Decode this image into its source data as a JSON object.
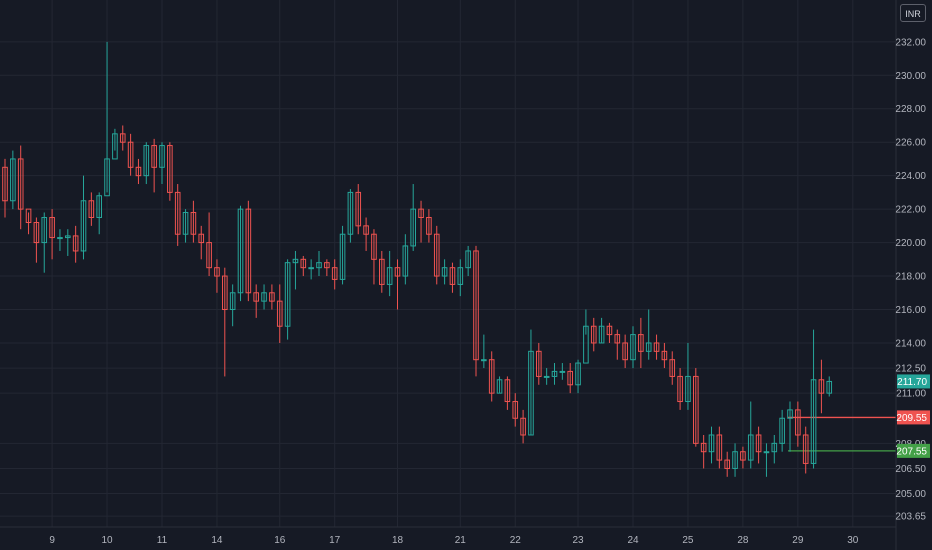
{
  "currency": "INR",
  "colors": {
    "background": "#161a25",
    "up": "#26a69a",
    "down": "#ef5350",
    "grid": "#232733",
    "text": "#b2b5be"
  },
  "chart_data": {
    "type": "candlestick",
    "title": "",
    "ylim": [
      203.0,
      234.5
    ],
    "y_ticks": [
      "232.00",
      "230.00",
      "228.00",
      "226.00",
      "224.00",
      "222.00",
      "220.00",
      "218.00",
      "216.00",
      "214.00",
      "212.50",
      "211.00",
      "208.00",
      "206.50",
      "205.00",
      "203.65"
    ],
    "x_ticks": [
      "9",
      "10",
      "11",
      "14",
      "16",
      "17",
      "18",
      "21",
      "22",
      "23",
      "24",
      "25",
      "28",
      "29",
      "30"
    ],
    "last_price": "211.70",
    "levels": [
      {
        "label": "209.55",
        "value": 209.55,
        "color": "#ef5350"
      },
      {
        "label": "207.55",
        "value": 207.55,
        "color": "#43a047"
      }
    ],
    "candles": [
      [
        224.5,
        222.5,
        225.0,
        221.5
      ],
      [
        222.5,
        225.0,
        225.5,
        222.0
      ],
      [
        225.0,
        222.0,
        225.8,
        220.8
      ],
      [
        222.0,
        221.2,
        221.8,
        220.5
      ],
      [
        221.2,
        220.0,
        221.5,
        218.8
      ],
      [
        220.0,
        221.5,
        221.8,
        218.2
      ],
      [
        221.5,
        220.3,
        222.0,
        219.0
      ],
      [
        220.3,
        220.3,
        220.8,
        219.5
      ],
      [
        220.3,
        220.4,
        220.8,
        219.2
      ],
      [
        220.4,
        219.5,
        221.0,
        218.8
      ],
      [
        219.5,
        222.5,
        224.0,
        219.0
      ],
      [
        222.5,
        221.5,
        223.0,
        221.0
      ],
      [
        221.5,
        222.8,
        223.0,
        220.5
      ],
      [
        222.8,
        225.0,
        232.0,
        223.0
      ],
      [
        225.0,
        226.5,
        226.8,
        225.5
      ],
      [
        226.5,
        226.0,
        227.0,
        225.5
      ],
      [
        226.0,
        224.5,
        226.5,
        224.0
      ],
      [
        224.5,
        224.0,
        225.0,
        223.5
      ],
      [
        224.0,
        225.8,
        226.0,
        223.5
      ],
      [
        225.8,
        224.5,
        226.2,
        223.0
      ],
      [
        224.5,
        225.8,
        226.0,
        223.5
      ],
      [
        225.8,
        223.0,
        226.0,
        222.5
      ],
      [
        223.0,
        220.5,
        223.5,
        219.8
      ],
      [
        220.5,
        221.8,
        222.0,
        220.0
      ],
      [
        221.8,
        220.5,
        222.5,
        220.0
      ],
      [
        220.5,
        220.0,
        221.0,
        219.0
      ],
      [
        220.0,
        218.5,
        221.8,
        218.0
      ],
      [
        218.5,
        218.0,
        219.0,
        217.0
      ],
      [
        218.0,
        216.0,
        218.5,
        212.0
      ],
      [
        216.0,
        217.0,
        217.5,
        215.0
      ],
      [
        217.0,
        222.0,
        222.2,
        216.5
      ],
      [
        222.0,
        217.0,
        222.5,
        216.5
      ],
      [
        217.0,
        216.5,
        217.5,
        215.5
      ],
      [
        216.5,
        217.0,
        217.5,
        216.0
      ],
      [
        217.0,
        216.5,
        217.5,
        216.0
      ],
      [
        216.5,
        215.0,
        217.5,
        214.0
      ],
      [
        215.0,
        218.8,
        219.0,
        214.2
      ],
      [
        218.8,
        219.0,
        219.5,
        217.2
      ],
      [
        219.0,
        218.5,
        219.2,
        218.0
      ],
      [
        218.5,
        218.5,
        219.0,
        217.8
      ],
      [
        218.5,
        218.8,
        219.5,
        218.0
      ],
      [
        218.8,
        218.5,
        219.0,
        218.0
      ],
      [
        218.5,
        217.8,
        219.0,
        217.2
      ],
      [
        217.8,
        220.5,
        221.0,
        217.5
      ],
      [
        220.5,
        223.0,
        223.2,
        220.0
      ],
      [
        223.0,
        221.0,
        223.5,
        220.5
      ],
      [
        221.0,
        220.5,
        221.5,
        219.5
      ],
      [
        220.5,
        219.0,
        220.8,
        217.5
      ],
      [
        219.0,
        217.5,
        219.5,
        217.0
      ],
      [
        217.5,
        218.5,
        219.5,
        216.8
      ],
      [
        218.5,
        218.0,
        219.0,
        216.0
      ],
      [
        218.0,
        219.8,
        220.5,
        217.5
      ],
      [
        219.8,
        222.0,
        223.5,
        219.5
      ],
      [
        222.0,
        221.5,
        222.5,
        220.0
      ],
      [
        221.5,
        220.5,
        222.0,
        220.0
      ],
      [
        220.5,
        218.0,
        221.0,
        217.5
      ],
      [
        218.0,
        218.5,
        219.0,
        217.5
      ],
      [
        218.5,
        217.5,
        218.8,
        217.0
      ],
      [
        217.5,
        218.5,
        219.0,
        216.8
      ],
      [
        218.5,
        219.5,
        219.8,
        218.0
      ],
      [
        219.5,
        213.0,
        219.8,
        212.0
      ],
      [
        213.0,
        213.0,
        214.5,
        212.5
      ],
      [
        213.0,
        211.0,
        213.5,
        210.5
      ],
      [
        211.0,
        211.8,
        212.0,
        211.0
      ],
      [
        211.8,
        210.5,
        212.0,
        210.0
      ],
      [
        210.5,
        209.5,
        211.0,
        209.0
      ],
      [
        209.5,
        208.5,
        210.0,
        208.0
      ],
      [
        208.5,
        213.5,
        214.8,
        208.5
      ],
      [
        213.5,
        212.0,
        214.0,
        211.5
      ],
      [
        212.0,
        212.0,
        212.5,
        211.5
      ],
      [
        212.0,
        212.3,
        212.8,
        211.5
      ],
      [
        212.3,
        212.3,
        212.8,
        211.8
      ],
      [
        212.3,
        211.5,
        212.8,
        211.0
      ],
      [
        211.5,
        212.8,
        213.0,
        211.0
      ],
      [
        212.8,
        215.0,
        216.0,
        214.5
      ],
      [
        215.0,
        214.0,
        215.5,
        213.5
      ],
      [
        214.0,
        215.0,
        215.5,
        214.0
      ],
      [
        215.0,
        214.5,
        215.2,
        214.0
      ],
      [
        214.5,
        214.0,
        214.8,
        213.0
      ],
      [
        214.0,
        213.0,
        214.5,
        212.5
      ],
      [
        213.0,
        214.5,
        215.0,
        212.5
      ],
      [
        214.5,
        213.5,
        215.5,
        212.5
      ],
      [
        213.5,
        214.0,
        216.0,
        213.0
      ],
      [
        214.0,
        213.5,
        214.5,
        213.0
      ],
      [
        213.5,
        213.0,
        214.0,
        212.5
      ],
      [
        213.0,
        212.0,
        213.5,
        211.5
      ],
      [
        212.0,
        210.5,
        212.5,
        210.0
      ],
      [
        210.5,
        212.0,
        214.0,
        210.0
      ],
      [
        212.0,
        208.0,
        212.5,
        207.8
      ],
      [
        208.0,
        207.5,
        208.5,
        206.5
      ],
      [
        207.5,
        208.5,
        209.0,
        206.8
      ],
      [
        208.5,
        207.0,
        209.0,
        206.5
      ],
      [
        207.0,
        206.5,
        207.5,
        206.0
      ],
      [
        206.5,
        207.5,
        208.0,
        206.0
      ],
      [
        207.5,
        207.0,
        207.8,
        206.5
      ],
      [
        207.0,
        208.5,
        210.5,
        206.5
      ],
      [
        208.5,
        207.5,
        209.0,
        206.8
      ],
      [
        207.5,
        207.5,
        208.0,
        206.0
      ],
      [
        207.5,
        208.0,
        208.5,
        206.8
      ],
      [
        208.0,
        209.5,
        210.0,
        207.5
      ],
      [
        209.5,
        210.0,
        210.5,
        207.5
      ],
      [
        210.0,
        208.5,
        210.5,
        207.8
      ],
      [
        208.5,
        206.8,
        209.0,
        206.2
      ],
      [
        206.8,
        211.8,
        214.8,
        206.5
      ],
      [
        211.8,
        211.0,
        213.0,
        209.8
      ],
      [
        211.0,
        211.7,
        212.0,
        210.8
      ]
    ]
  }
}
